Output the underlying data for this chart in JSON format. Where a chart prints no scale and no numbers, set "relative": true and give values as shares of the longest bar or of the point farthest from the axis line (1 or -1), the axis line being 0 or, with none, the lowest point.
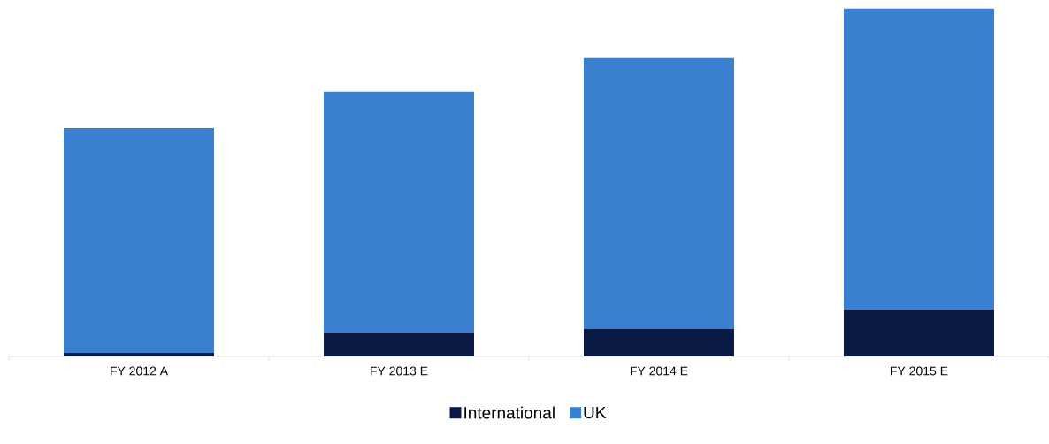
{
  "chart_data": {
    "type": "bar",
    "stacked": true,
    "relative": true,
    "legend": "bottom",
    "categories": [
      "FY 2012 A",
      "FY 2013 E",
      "FY 2014 E",
      "FY 2015 E"
    ],
    "series": [
      {
        "name": "International",
        "color": "#0b1a44",
        "values": [
          0.01,
          0.069,
          0.079,
          0.135
        ]
      },
      {
        "name": "UK",
        "color": "#3a80d0",
        "values": [
          0.646,
          0.692,
          0.779,
          0.865
        ]
      }
    ]
  }
}
